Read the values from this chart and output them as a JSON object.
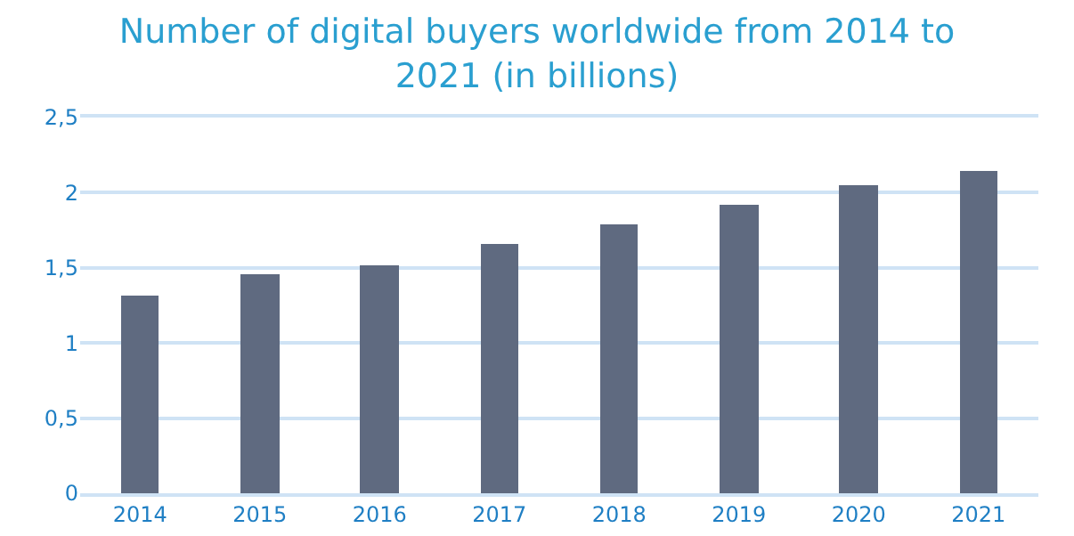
{
  "chart_data": {
    "type": "bar",
    "title": "Number of digital buyers worldwide from 2014 to 2021 (in billions)",
    "categories": [
      "2014",
      "2015",
      "2016",
      "2017",
      "2018",
      "2019",
      "2020",
      "2021"
    ],
    "values": [
      1.32,
      1.46,
      1.52,
      1.66,
      1.79,
      1.92,
      2.05,
      2.14
    ],
    "color": "#5f6a80",
    "ylim": [
      0,
      2.5
    ],
    "yticks": [
      0,
      {
        "value": 0.5,
        "label": "0,5"
      },
      1,
      {
        "value": 1.5,
        "label": "1,5"
      },
      2,
      {
        "value": 2.5,
        "label": "2,5"
      }
    ],
    "grid": "y"
  }
}
